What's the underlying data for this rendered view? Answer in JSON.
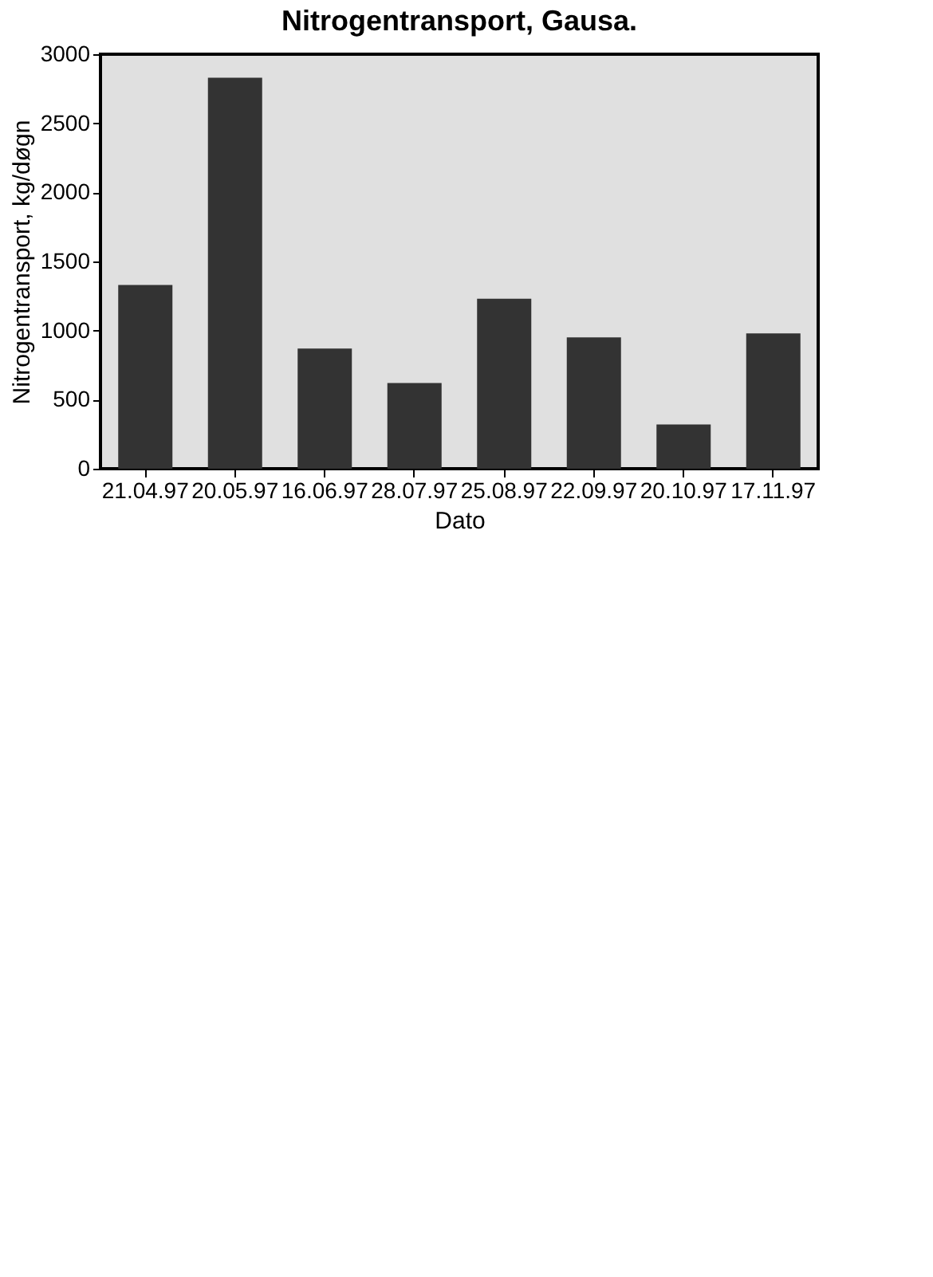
{
  "chart_data": {
    "type": "bar",
    "title": "Nitrogentransport, Gausa.",
    "xlabel": "Dato",
    "ylabel": "Nitrogentransport, kg/døgn",
    "categories": [
      "21.04.97",
      "20.05.97",
      "16.06.97",
      "28.07.97",
      "25.08.97",
      "22.09.97",
      "20.10.97",
      "17.11.97"
    ],
    "values": [
      1330,
      2830,
      870,
      620,
      1230,
      950,
      320,
      980
    ],
    "color": "#333333",
    "ylim": [
      0,
      3000
    ],
    "yticks": [
      0,
      500,
      1000,
      1500,
      2000,
      2500,
      3000
    ],
    "grid": false
  }
}
